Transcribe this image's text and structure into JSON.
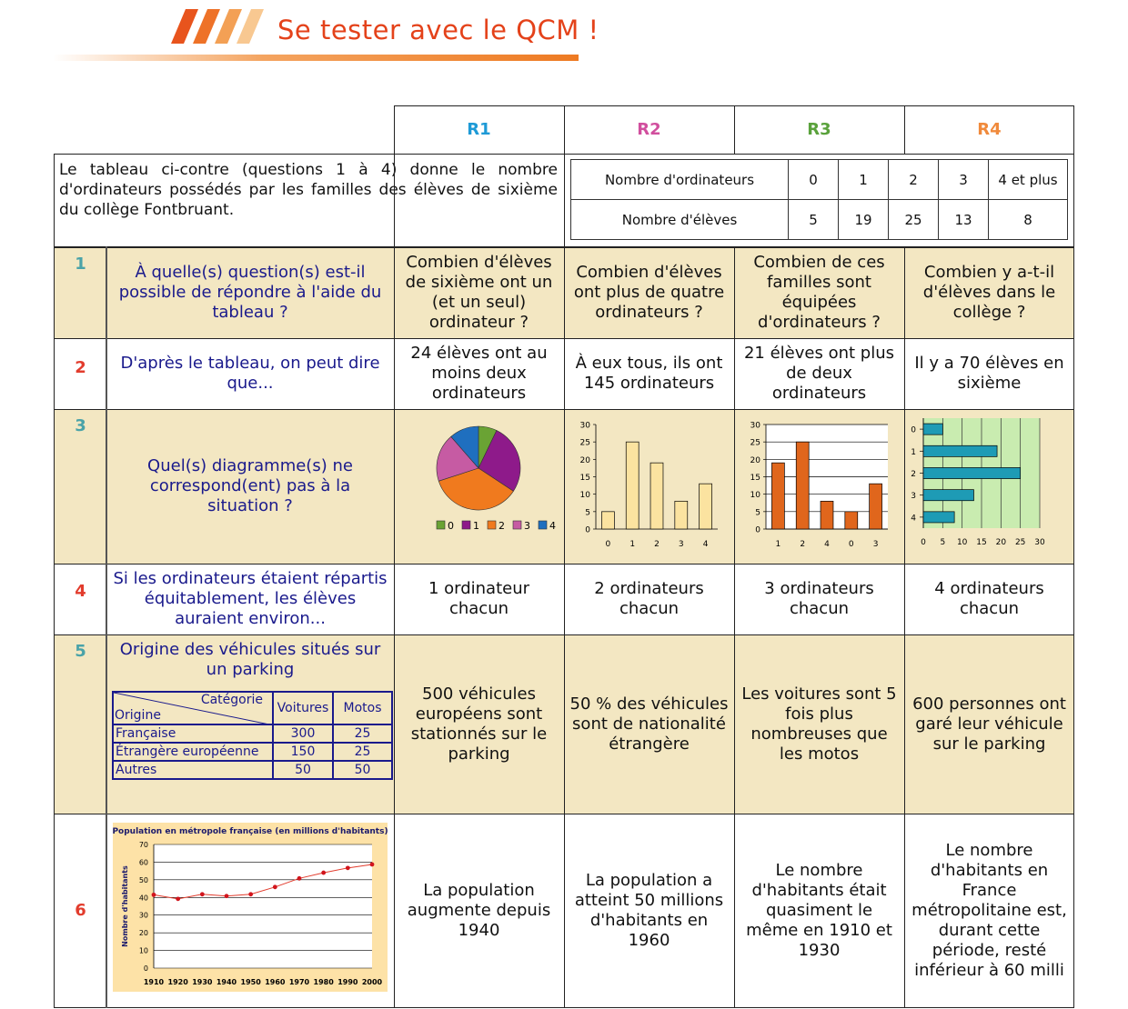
{
  "banner": {
    "title": "Se tester avec le QCM !"
  },
  "headers": {
    "r1": "R1",
    "r2": "R2",
    "r3": "R3",
    "r4": "R4"
  },
  "colors": {
    "r1": "#1e9ad6",
    "r2": "#d14f9e",
    "r3": "#5aa23c",
    "r4": "#f08a3c",
    "question": "#1a1a8c",
    "beige": "#f3e7c2"
  },
  "intro": {
    "text": "Le tableau ci-contre (questions 1 à 4) donne le nombre d'ordinateurs possédés par les familles des élèves de sixième du collège Fontbruant.",
    "table": {
      "row1_label": "Nombre d'ordinateurs",
      "row1": [
        "0",
        "1",
        "2",
        "3",
        "4 et plus"
      ],
      "row2_label": "Nombre d'élèves",
      "row2": [
        "5",
        "19",
        "25",
        "13",
        "8"
      ]
    }
  },
  "questions": [
    {
      "num": "1",
      "text": "À quelle(s) question(s) est-il possible de répondre à l'aide du tableau ?",
      "answers": [
        "Combien d'élèves de sixième ont un (et un seul) ordinateur ?",
        "Combien d'élèves ont plus de quatre ordinateurs ?",
        "Combien de ces familles sont équipées d'ordinateurs ?",
        "Combien y a-t-il d'élèves dans le collège ?"
      ]
    },
    {
      "num": "2",
      "text": "D'après le tableau, on peut dire que...",
      "answers": [
        "24 élèves ont au moins deux ordinateurs",
        "À eux tous, ils ont 145 ordinateurs",
        "21 élèves ont plus de deux ordinateurs",
        "Il y a 70 élèves en sixième"
      ]
    },
    {
      "num": "3",
      "text": "Quel(s) diagramme(s) ne correspond(ent) pas à la situation ?",
      "answers": []
    },
    {
      "num": "4",
      "text": "Si les ordinateurs étaient répartis équitablement, les élèves auraient environ...",
      "answers": [
        "1 ordinateur chacun",
        "2 ordinateurs chacun",
        "3 ordinateurs chacun",
        "4 ordinateurs chacun"
      ]
    },
    {
      "num": "5",
      "text": "Origine des véhicules situés sur un parking",
      "answers": [
        "500 véhicules européens sont stationnés sur le parking",
        "50 % des véhicules sont de nationalité étrangère",
        "Les voitures sont 5 fois plus nombreuses que les motos",
        "600 personnes ont garé leur véhicule sur le parking"
      ]
    },
    {
      "num": "6",
      "text": "",
      "answers": [
        "La population augmente depuis 1940",
        "La population a atteint 50 millions d'habitants en 1960",
        "Le nombre d'habitants était quasiment le même en 1910 et 1930",
        "Le nombre d'habitants en France métropolitaine est, durant cette période, resté inférieur à 60 milli"
      ]
    }
  ],
  "vehicles": {
    "corner_top": "Catégorie",
    "corner_bottom": "Origine",
    "cols": [
      "Voitures",
      "Motos"
    ],
    "rows": [
      {
        "label": "Française",
        "values": [
          "300",
          "25"
        ]
      },
      {
        "label": "Étrangère européenne",
        "values": [
          "150",
          "25"
        ]
      },
      {
        "label": "Autres",
        "values": [
          "50",
          "50"
        ]
      }
    ]
  },
  "chart_data": [
    {
      "type": "pie",
      "categories": [
        "0",
        "1",
        "2",
        "3",
        "4"
      ],
      "values": [
        5,
        19,
        25,
        13,
        8
      ],
      "colors": [
        "#6aa334",
        "#8e1a8a",
        "#f07a1e",
        "#c65ba3",
        "#1f6fbf"
      ]
    },
    {
      "type": "bar",
      "categories": [
        "0",
        "1",
        "2",
        "3",
        "4"
      ],
      "values": [
        5,
        25,
        19,
        8,
        13
      ],
      "ylim": [
        0,
        30
      ],
      "yticks": [
        "0",
        "5",
        "10",
        "15",
        "20",
        "25",
        "30"
      ],
      "color": "#fbe3a0"
    },
    {
      "type": "bar",
      "categories": [
        "1",
        "2",
        "4",
        "0",
        "3"
      ],
      "values": [
        19,
        25,
        8,
        5,
        13
      ],
      "ylim": [
        0,
        30
      ],
      "yticks": [
        "0",
        "5",
        "10",
        "15",
        "20",
        "25",
        "30"
      ],
      "color": "#e0661c"
    },
    {
      "type": "bar",
      "orientation": "horizontal",
      "categories": [
        "0",
        "1",
        "2",
        "3",
        "4"
      ],
      "values": [
        5,
        19,
        25,
        13,
        8
      ],
      "xlim": [
        0,
        30
      ],
      "xticks": [
        "0",
        "5",
        "10",
        "15",
        "20",
        "25",
        "30"
      ],
      "color": "#1e9bb5"
    },
    {
      "type": "line",
      "title": "Population en métropole française (en millions d'habitants)",
      "ylabel": "Nombre d'habitants",
      "x": [
        "1910",
        "1920",
        "1930",
        "1940",
        "1950",
        "1960",
        "1970",
        "1980",
        "1990",
        "2000"
      ],
      "y": [
        41.5,
        39.2,
        41.8,
        40.8,
        41.8,
        45.9,
        50.8,
        54,
        56.7,
        58.7
      ],
      "ylim": [
        0,
        70
      ],
      "yticks": [
        "0",
        "10",
        "20",
        "30",
        "40",
        "50",
        "60",
        "70"
      ]
    }
  ]
}
